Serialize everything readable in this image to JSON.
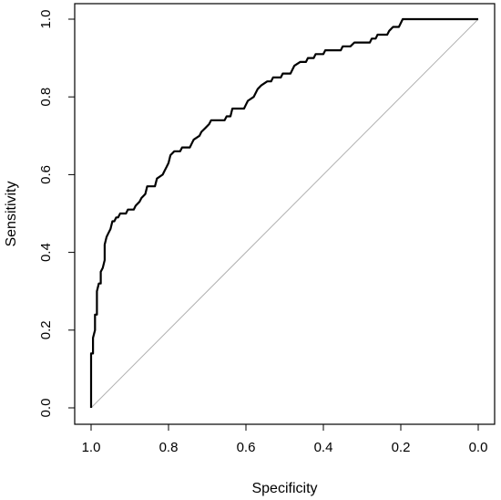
{
  "chart_data": {
    "type": "line",
    "title": "",
    "xlabel": "Specificity",
    "ylabel": "Sensitivity",
    "x_reversed": true,
    "xlim": [
      1.0,
      0.0
    ],
    "ylim": [
      0.0,
      1.0
    ],
    "x_ticks": [
      "1.0",
      "0.8",
      "0.6",
      "0.4",
      "0.2",
      "0.0"
    ],
    "y_ticks": [
      "0.0",
      "0.2",
      "0.4",
      "0.6",
      "0.8",
      "1.0"
    ],
    "grid": false,
    "legend": "none",
    "series": [
      {
        "color": "#000000",
        "points": [
          [
            1.0,
            0.0
          ],
          [
            1.0,
            0.14
          ],
          [
            0.995,
            0.14
          ],
          [
            0.995,
            0.18
          ],
          [
            0.99,
            0.2
          ],
          [
            0.99,
            0.24
          ],
          [
            0.985,
            0.24
          ],
          [
            0.985,
            0.3
          ],
          [
            0.98,
            0.32
          ],
          [
            0.975,
            0.32
          ],
          [
            0.975,
            0.35
          ],
          [
            0.97,
            0.36
          ],
          [
            0.965,
            0.38
          ],
          [
            0.965,
            0.42
          ],
          [
            0.96,
            0.44
          ],
          [
            0.955,
            0.45
          ],
          [
            0.95,
            0.46
          ],
          [
            0.945,
            0.48
          ],
          [
            0.94,
            0.48
          ],
          [
            0.935,
            0.49
          ],
          [
            0.93,
            0.49
          ],
          [
            0.925,
            0.5
          ],
          [
            0.91,
            0.5
          ],
          [
            0.905,
            0.51
          ],
          [
            0.89,
            0.51
          ],
          [
            0.885,
            0.52
          ],
          [
            0.875,
            0.53
          ],
          [
            0.87,
            0.54
          ],
          [
            0.86,
            0.55
          ],
          [
            0.855,
            0.57
          ],
          [
            0.835,
            0.57
          ],
          [
            0.83,
            0.59
          ],
          [
            0.815,
            0.6
          ],
          [
            0.81,
            0.61
          ],
          [
            0.805,
            0.62
          ],
          [
            0.8,
            0.63
          ],
          [
            0.795,
            0.65
          ],
          [
            0.785,
            0.66
          ],
          [
            0.77,
            0.66
          ],
          [
            0.765,
            0.67
          ],
          [
            0.745,
            0.67
          ],
          [
            0.74,
            0.68
          ],
          [
            0.735,
            0.69
          ],
          [
            0.72,
            0.7
          ],
          [
            0.715,
            0.71
          ],
          [
            0.705,
            0.72
          ],
          [
            0.695,
            0.73
          ],
          [
            0.69,
            0.74
          ],
          [
            0.655,
            0.74
          ],
          [
            0.65,
            0.75
          ],
          [
            0.64,
            0.75
          ],
          [
            0.635,
            0.77
          ],
          [
            0.605,
            0.77
          ],
          [
            0.6,
            0.78
          ],
          [
            0.595,
            0.79
          ],
          [
            0.58,
            0.8
          ],
          [
            0.57,
            0.82
          ],
          [
            0.56,
            0.83
          ],
          [
            0.545,
            0.84
          ],
          [
            0.535,
            0.84
          ],
          [
            0.53,
            0.85
          ],
          [
            0.51,
            0.85
          ],
          [
            0.505,
            0.86
          ],
          [
            0.485,
            0.86
          ],
          [
            0.48,
            0.87
          ],
          [
            0.475,
            0.88
          ],
          [
            0.46,
            0.89
          ],
          [
            0.445,
            0.89
          ],
          [
            0.44,
            0.9
          ],
          [
            0.425,
            0.9
          ],
          [
            0.42,
            0.91
          ],
          [
            0.4,
            0.91
          ],
          [
            0.395,
            0.92
          ],
          [
            0.355,
            0.92
          ],
          [
            0.35,
            0.93
          ],
          [
            0.33,
            0.93
          ],
          [
            0.32,
            0.94
          ],
          [
            0.28,
            0.94
          ],
          [
            0.275,
            0.95
          ],
          [
            0.265,
            0.95
          ],
          [
            0.26,
            0.96
          ],
          [
            0.235,
            0.96
          ],
          [
            0.23,
            0.97
          ],
          [
            0.22,
            0.98
          ],
          [
            0.205,
            0.98
          ],
          [
            0.2,
            0.99
          ],
          [
            0.195,
            1.0
          ],
          [
            0.07,
            1.0
          ],
          [
            0.065,
            1.0
          ],
          [
            0.0,
            1.0
          ]
        ]
      }
    ],
    "reference_line": {
      "from": [
        1.0,
        0.0
      ],
      "to": [
        0.0,
        1.0
      ],
      "color": "#b0b0b0"
    }
  }
}
